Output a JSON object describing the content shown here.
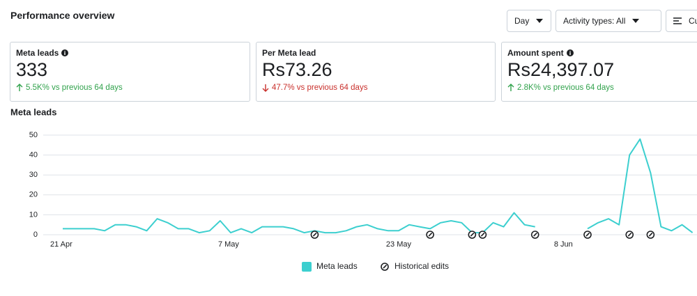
{
  "header": {
    "title": "Performance overview",
    "controls": [
      "Day",
      "Activity types: All",
      "Cu"
    ]
  },
  "metrics": [
    {
      "label": "Meta leads",
      "info": true,
      "value": "333",
      "change": "5.5K% vs previous 64 days",
      "trend": "up"
    },
    {
      "label": "Per Meta lead",
      "info": false,
      "value": "Rs73.26",
      "change": "47.7% vs previous 64 days",
      "trend": "down"
    },
    {
      "label": "Amount spent",
      "info": true,
      "value": "Rs24,397.07",
      "change": "2.8K% vs previous 64 days",
      "trend": "up"
    }
  ],
  "chart_data": {
    "type": "line",
    "title": "Meta leads",
    "categories": [
      "21 Apr",
      null,
      null,
      null,
      null,
      null,
      null,
      null,
      null,
      null,
      null,
      null,
      null,
      null,
      null,
      null,
      "7 May",
      null,
      null,
      null,
      null,
      null,
      null,
      null,
      null,
      null,
      null,
      null,
      null,
      null,
      null,
      null,
      "23 May",
      null,
      null,
      null,
      null,
      null,
      null,
      null,
      null,
      null,
      null,
      null,
      null,
      null,
      null,
      null,
      "8 Jun",
      null,
      null,
      null,
      null,
      null,
      null,
      null,
      null,
      null,
      null,
      null,
      null
    ],
    "series": [
      {
        "name": "Meta leads",
        "color": "#3ccfcf",
        "values": [
          3,
          3,
          3,
          3,
          2,
          5,
          5,
          4,
          2,
          8,
          6,
          3,
          3,
          1,
          2,
          7,
          1,
          3,
          1,
          4,
          4,
          4,
          3,
          1,
          2,
          1,
          1,
          2,
          4,
          5,
          3,
          2,
          2,
          5,
          4,
          3,
          6,
          7,
          6,
          1,
          1,
          6,
          4,
          11,
          5,
          4,
          null,
          null,
          null,
          null,
          3,
          6,
          8,
          5,
          40,
          48,
          31,
          4,
          2,
          5,
          1
        ]
      },
      {
        "name": "Historical edits",
        "color": "#1c1e21",
        "marker": "edit",
        "values": [
          null,
          null,
          null,
          null,
          null,
          null,
          null,
          null,
          null,
          null,
          null,
          null,
          null,
          null,
          null,
          null,
          null,
          null,
          null,
          null,
          null,
          null,
          null,
          null,
          0,
          null,
          null,
          null,
          null,
          null,
          null,
          null,
          null,
          null,
          null,
          0,
          null,
          null,
          null,
          0,
          0,
          null,
          null,
          null,
          null,
          0,
          null,
          null,
          null,
          null,
          0,
          null,
          null,
          null,
          0,
          null,
          0,
          null,
          null,
          null,
          null
        ]
      }
    ],
    "ylim": [
      0,
      50
    ],
    "yticks": [
      0,
      10,
      20,
      30,
      40,
      50
    ],
    "grid": true,
    "legend": "bottom"
  }
}
